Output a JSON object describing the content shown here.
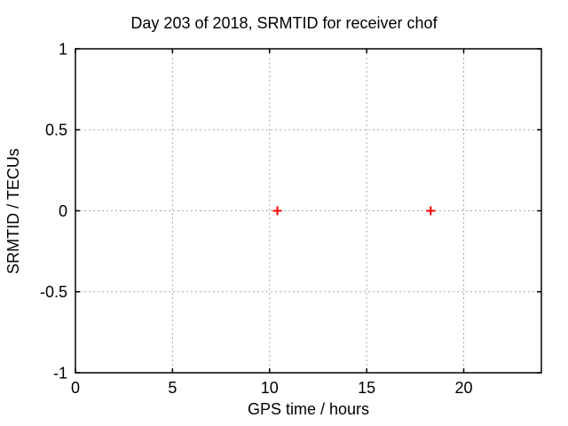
{
  "chart_data": {
    "type": "scatter",
    "title": "Day 203 of 2018, SRMTID for receiver chof",
    "xlabel": "GPS time / hours",
    "ylabel": "SRMTID / TECUs",
    "xlim": [
      0,
      24
    ],
    "ylim": [
      -1,
      1
    ],
    "xtick_values": [
      0,
      5,
      10,
      15,
      20
    ],
    "xtick_labels": [
      "0",
      "5",
      "10",
      "15",
      "20"
    ],
    "ytick_values": [
      1,
      0.5,
      0,
      -0.5,
      -1
    ],
    "ytick_labels": [
      "1",
      "0.5",
      "0",
      "-0.5",
      "-1"
    ],
    "grid": true,
    "legend_position": "none",
    "series": [
      {
        "name": "SRMTID",
        "marker": "plus",
        "color": "#ff0000",
        "points": [
          [
            10.4,
            0
          ],
          [
            18.3,
            0
          ]
        ]
      }
    ],
    "colors": {
      "background": "#ffffff",
      "border": "#000000",
      "grid": "#a8a8a8",
      "tick": "#000000",
      "text": "#000000"
    }
  }
}
